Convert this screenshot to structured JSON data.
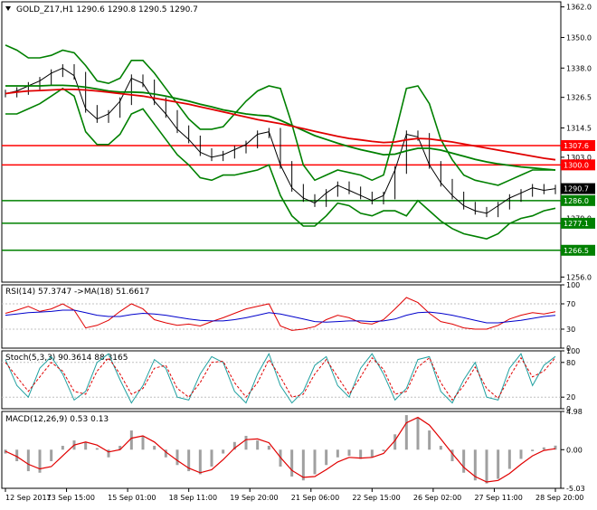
{
  "chart_data": {
    "type": "line",
    "symbol": "GOLD_Z17",
    "timeframe": "H1",
    "header_text": "GOLD_Z17,H1  1290.6 1290.8 1290.5 1290.7",
    "ohlc": {
      "open": 1290.6,
      "high": 1290.8,
      "low": 1290.5,
      "close": 1290.7
    },
    "x_ticks": [
      "12 Sep 2017",
      "13 Sep 15:00",
      "15 Sep 01:00",
      "18 Sep 11:00",
      "19 Sep 20:00",
      "21 Sep 06:00",
      "22 Sep 15:00",
      "26 Sep 02:00",
      "27 Sep 11:00",
      "28 Sep 20:00"
    ],
    "price_panel": {
      "ylim": [
        1254.0,
        1364.0
      ],
      "y_ticks": [
        1362.0,
        1350.0,
        1338.0,
        1326.5,
        1314.5,
        1303.0,
        1290.7,
        1279.0,
        1266.5,
        1256.0
      ],
      "close": [
        1328,
        1329,
        1331,
        1333,
        1336,
        1338,
        1335,
        1322,
        1318,
        1320,
        1325,
        1334,
        1332,
        1325,
        1320,
        1314,
        1310,
        1305,
        1303,
        1304,
        1306,
        1308,
        1312,
        1313,
        1300,
        1291,
        1287,
        1285,
        1289,
        1292,
        1290,
        1288,
        1286,
        1288,
        1298,
        1312,
        1311,
        1300,
        1293,
        1288,
        1284,
        1282,
        1281,
        1284,
        1287,
        1289,
        1291,
        1290,
        1290.7
      ],
      "bb_upper": [
        1347,
        1345,
        1342,
        1342,
        1343,
        1345,
        1344,
        1339,
        1333,
        1332,
        1334,
        1341,
        1341,
        1336,
        1330,
        1324,
        1318,
        1314,
        1314,
        1315,
        1320,
        1325,
        1329,
        1331,
        1330,
        1316,
        1300,
        1294,
        1296,
        1298,
        1297,
        1296,
        1294,
        1296,
        1312,
        1330,
        1331,
        1324,
        1310,
        1302,
        1296,
        1294,
        1293,
        1292,
        1294,
        1296,
        1298,
        1298,
        1298
      ],
      "bb_lower": [
        1320,
        1320,
        1322,
        1324,
        1327,
        1330,
        1327,
        1313,
        1308,
        1308,
        1312,
        1320,
        1322,
        1316,
        1310,
        1304,
        1300,
        1295,
        1294,
        1296,
        1296,
        1297,
        1298,
        1300,
        1288,
        1280,
        1276,
        1276,
        1280,
        1285,
        1284,
        1281,
        1280,
        1282,
        1282,
        1280,
        1286,
        1282,
        1278,
        1275,
        1273,
        1272,
        1271,
        1273,
        1277,
        1279,
        1280,
        1282,
        1283
      ],
      "ma_red": [
        1328,
        1328.6,
        1329,
        1329.2,
        1329.4,
        1329.6,
        1329.6,
        1329.4,
        1329,
        1328.5,
        1328,
        1327.5,
        1327,
        1326.2,
        1325.4,
        1324.6,
        1323.8,
        1322.8,
        1321.8,
        1320.8,
        1319.8,
        1318.8,
        1317.8,
        1317,
        1316.2,
        1315.2,
        1314.2,
        1313.2,
        1312.2,
        1311.2,
        1310.4,
        1309.8,
        1309.2,
        1308.8,
        1309,
        1309.8,
        1310.4,
        1310.2,
        1309.6,
        1309,
        1308.2,
        1307.4,
        1306.6,
        1305.8,
        1305,
        1304.2,
        1303.4,
        1302.6,
        1302
      ],
      "ma_green": [
        1331,
        1331,
        1331,
        1331,
        1331.2,
        1331.2,
        1331,
        1330.5,
        1329.8,
        1329,
        1328.6,
        1328.6,
        1328.4,
        1327.8,
        1327,
        1326,
        1325,
        1323.8,
        1322.8,
        1321.6,
        1320.8,
        1320,
        1319.5,
        1319.2,
        1317.5,
        1315.5,
        1313.5,
        1311.5,
        1310,
        1308.5,
        1307.2,
        1306,
        1305,
        1304,
        1304.2,
        1305.5,
        1306.5,
        1306.5,
        1305.8,
        1304.6,
        1303.4,
        1302.2,
        1301.2,
        1300.4,
        1299.8,
        1299.2,
        1298.8,
        1298.4,
        1298
      ],
      "red_levels": [
        1307.6,
        1300.0
      ],
      "green_levels": [
        1286.0,
        1277.1,
        1266.5
      ],
      "current_label": "1290.7",
      "extra_tick": "1279.0",
      "level_labels": [
        "1307.6",
        "1300.0",
        "1286.0",
        "1277.1",
        "1266.5"
      ]
    },
    "rsi_panel": {
      "title": "RSI(14) 57.3747  ->MA(18) 51.6617",
      "ylim": [
        0,
        100
      ],
      "y_ticks": [
        "100",
        "70",
        "30",
        "0"
      ],
      "rsi": [
        55,
        60,
        66,
        58,
        62,
        70,
        60,
        32,
        36,
        44,
        58,
        70,
        62,
        45,
        40,
        36,
        38,
        35,
        42,
        48,
        55,
        62,
        66,
        70,
        35,
        28,
        30,
        34,
        45,
        52,
        48,
        40,
        38,
        45,
        62,
        80,
        72,
        55,
        42,
        38,
        32,
        30,
        30,
        36,
        46,
        52,
        56,
        54,
        57.37
      ],
      "rsi_ma": [
        52,
        54,
        56,
        57,
        58,
        60,
        60,
        56,
        52,
        50,
        50,
        53,
        55,
        54,
        52,
        49,
        46,
        44,
        43,
        43,
        45,
        48,
        52,
        56,
        54,
        50,
        46,
        42,
        41,
        42,
        43,
        43,
        42,
        43,
        46,
        52,
        56,
        57,
        55,
        52,
        48,
        44,
        40,
        40,
        42,
        44,
        47,
        50,
        51.66
      ]
    },
    "stoch_panel": {
      "title": "Stoch(5,3,3) 90.3614 88.3165",
      "ylim": [
        0,
        100
      ],
      "y_ticks": [
        "100",
        "80",
        "20",
        "0"
      ],
      "main": [
        85,
        40,
        20,
        70,
        90,
        60,
        15,
        30,
        80,
        95,
        50,
        10,
        40,
        85,
        70,
        20,
        15,
        60,
        90,
        80,
        30,
        10,
        60,
        95,
        40,
        10,
        30,
        75,
        90,
        40,
        20,
        70,
        95,
        60,
        15,
        35,
        85,
        90,
        30,
        10,
        50,
        80,
        20,
        15,
        70,
        95,
        40,
        75,
        90.36
      ],
      "signal": [
        80,
        55,
        30,
        55,
        80,
        65,
        30,
        25,
        65,
        88,
        60,
        25,
        35,
        70,
        75,
        35,
        20,
        45,
        80,
        82,
        45,
        20,
        45,
        85,
        55,
        20,
        25,
        60,
        85,
        55,
        25,
        55,
        88,
        68,
        25,
        30,
        72,
        88,
        45,
        15,
        40,
        72,
        35,
        18,
        55,
        88,
        55,
        65,
        88.32
      ]
    },
    "macd_panel": {
      "title": "MACD(12,26,9) 0.53 0.13",
      "ylim": [
        -5.03,
        4.98
      ],
      "y_ticks": [
        "4.98",
        "0.00",
        "-5.03"
      ],
      "hist": [
        -0.5,
        -1.5,
        -2.8,
        -3.0,
        -1.5,
        0.5,
        1.2,
        1.0,
        0.2,
        -1.0,
        0.5,
        2.5,
        1.8,
        0.5,
        -1.0,
        -2.0,
        -2.8,
        -3.2,
        -2.2,
        -0.5,
        1.0,
        1.8,
        1.2,
        0.5,
        -2.2,
        -3.5,
        -4.0,
        -3.2,
        -2.0,
        -1.0,
        -0.8,
        -1.2,
        -1.0,
        -0.2,
        2.0,
        4.5,
        4.2,
        2.5,
        0.5,
        -1.5,
        -3.0,
        -4.0,
        -4.4,
        -3.8,
        -2.5,
        -1.2,
        -0.2,
        0.3,
        0.53
      ],
      "signal": [
        -0.2,
        -0.9,
        -1.9,
        -2.5,
        -2.2,
        -0.8,
        0.6,
        1.0,
        0.6,
        -0.3,
        0.0,
        1.5,
        1.8,
        1.0,
        -0.3,
        -1.4,
        -2.4,
        -3.0,
        -2.6,
        -1.3,
        0.2,
        1.3,
        1.4,
        0.9,
        -1.0,
        -2.7,
        -3.6,
        -3.5,
        -2.6,
        -1.6,
        -1.0,
        -1.1,
        -1.0,
        -0.5,
        1.2,
        3.5,
        4.2,
        3.2,
        1.4,
        -0.5,
        -2.3,
        -3.5,
        -4.2,
        -4.0,
        -3.1,
        -1.9,
        -0.8,
        -0.1,
        0.13
      ]
    }
  },
  "colors": {
    "bg": "#ffffff",
    "axis": "#000000",
    "grid_dot": "#c0c0c0",
    "candle": "#000000",
    "bollinger": "#008000",
    "ma_red": "#e00000",
    "ma_green": "#008000",
    "red_level": "#ff0000",
    "green_level": "#008000",
    "rsi": "#e00000",
    "rsi_ma": "#0000cc",
    "stoch_main": "#20a0a0",
    "stoch_signal": "#e00000",
    "macd_hist": "#a0a0a0",
    "macd_signal": "#e00000",
    "label_red_bg": "#ff0000",
    "label_green_bg": "#008000",
    "label_current_bg": "#000000"
  }
}
